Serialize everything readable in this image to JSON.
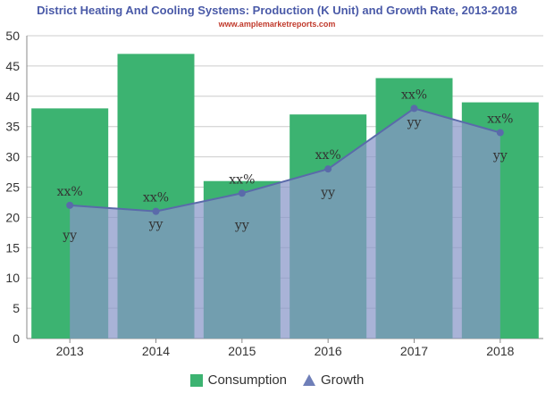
{
  "title": "District Heating And Cooling Systems: Production (K Unit) and Growth Rate, 2013-2018",
  "subtitle": "www.amplemarketreports.com",
  "colors": {
    "bar": "#3cb371",
    "area": "#8896c8",
    "line": "#5a6aaa",
    "title": "#4a5aa8",
    "subtitle": "#c0392b"
  },
  "chart_data": {
    "type": "bar",
    "categories": [
      "2013",
      "2014",
      "2015",
      "2016",
      "2017",
      "2018"
    ],
    "series": [
      {
        "name": "Consumption",
        "type": "bar",
        "values": [
          38,
          47,
          26,
          37,
          43,
          39
        ],
        "labels": [
          "yy",
          "yy",
          "yy",
          "yy",
          "yy",
          "yy"
        ]
      },
      {
        "name": "Growth",
        "type": "area",
        "values": [
          22,
          21,
          24,
          28,
          38,
          34
        ],
        "labels": [
          "xx%",
          "xx%",
          "xx%",
          "xx%",
          "xx%",
          "xx%"
        ]
      }
    ],
    "ylim": [
      0,
      50
    ],
    "yticks": [
      0,
      5,
      10,
      15,
      20,
      25,
      30,
      35,
      40,
      45,
      50
    ],
    "grid": true,
    "legend_position": "bottom"
  },
  "legend": [
    {
      "label": "Consumption",
      "icon": "square"
    },
    {
      "label": "Growth",
      "icon": "triangle"
    }
  ]
}
